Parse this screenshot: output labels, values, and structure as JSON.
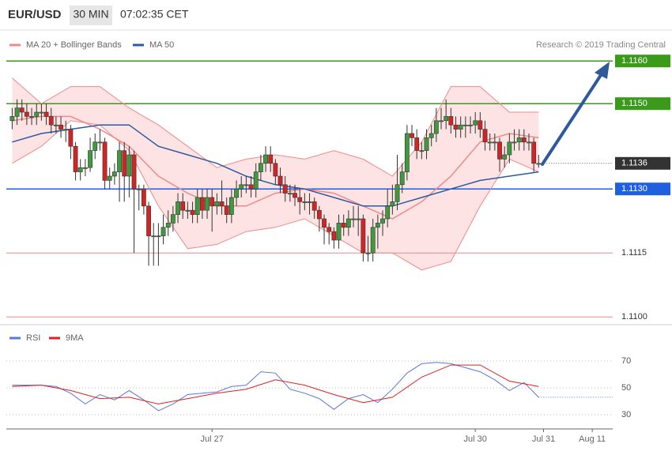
{
  "chart_data": {
    "type": "candlestick",
    "title": "EUR/USD",
    "timeframe": "30 MIN",
    "time": "07:02:35 CET",
    "credit": "Research © 2019 Trading Central",
    "up_color": "#3d9a3d",
    "down_color": "#d22424",
    "xlim": [
      -1.2,
      124
    ],
    "xticks": [
      {
        "value": 41,
        "label": "Jul 27"
      },
      {
        "value": 95,
        "label": "Jul 30"
      },
      {
        "value": 109,
        "label": "Jul 31"
      },
      {
        "value": 119,
        "label": "Aug 11"
      }
    ],
    "ylim": [
      1.1098,
      1.1163
    ],
    "ohlc": [
      [
        1.1146,
        1.1149,
        1.1144,
        1.1147
      ],
      [
        1.1147,
        1.1151,
        1.1145,
        1.1149
      ],
      [
        1.1149,
        1.1151,
        1.1146,
        1.1148
      ],
      [
        1.1148,
        1.115,
        1.1145,
        1.1147
      ],
      [
        1.1147,
        1.1149,
        1.1145,
        1.1147
      ],
      [
        1.1147,
        1.115,
        1.1145,
        1.1148
      ],
      [
        1.1148,
        1.115,
        1.1146,
        1.1148
      ],
      [
        1.1148,
        1.115,
        1.1145,
        1.1147
      ],
      [
        1.1147,
        1.1149,
        1.1143,
        1.1145
      ],
      [
        1.1145,
        1.1147,
        1.1143,
        1.1145
      ],
      [
        1.1145,
        1.1147,
        1.1142,
        1.1144
      ],
      [
        1.1144,
        1.1146,
        1.1141,
        1.1144
      ],
      [
        1.1144,
        1.1145,
        1.1137,
        1.114
      ],
      [
        1.114,
        1.1141,
        1.1132,
        1.1134
      ],
      [
        1.1134,
        1.1137,
        1.1132,
        1.1135
      ],
      [
        1.1135,
        1.1137,
        1.1133,
        1.1135
      ],
      [
        1.1135,
        1.1142,
        1.1134,
        1.1139
      ],
      [
        1.1139,
        1.1143,
        1.1137,
        1.1141
      ],
      [
        1.1141,
        1.1144,
        1.1139,
        1.1141
      ],
      [
        1.1141,
        1.1142,
        1.113,
        1.1132
      ],
      [
        1.1132,
        1.1135,
        1.113,
        1.1133
      ],
      [
        1.1133,
        1.1136,
        1.1131,
        1.1134
      ],
      [
        1.1134,
        1.1141,
        1.1127,
        1.1139
      ],
      [
        1.1139,
        1.1141,
        1.1127,
        1.1133
      ],
      [
        1.1133,
        1.114,
        1.1128,
        1.1138
      ],
      [
        1.1138,
        1.1139,
        1.1115,
        1.113
      ],
      [
        1.113,
        1.1131,
        1.1125,
        1.113
      ],
      [
        1.113,
        1.1131,
        1.1124,
        1.1126
      ],
      [
        1.1126,
        1.1127,
        1.1112,
        1.1119
      ],
      [
        1.1119,
        1.1122,
        1.1112,
        1.1119
      ],
      [
        1.1119,
        1.1122,
        1.1112,
        1.1119
      ],
      [
        1.1119,
        1.1124,
        1.1117,
        1.1121
      ],
      [
        1.1121,
        1.1125,
        1.1119,
        1.1122
      ],
      [
        1.1122,
        1.1126,
        1.112,
        1.1124
      ],
      [
        1.1124,
        1.1129,
        1.1122,
        1.1127
      ],
      [
        1.1127,
        1.1129,
        1.1123,
        1.1125
      ],
      [
        1.1125,
        1.1127,
        1.1123,
        1.1125
      ],
      [
        1.1125,
        1.1127,
        1.1122,
        1.1124
      ],
      [
        1.1124,
        1.113,
        1.1122,
        1.1128
      ],
      [
        1.1128,
        1.113,
        1.1123,
        1.1125
      ],
      [
        1.1125,
        1.113,
        1.1123,
        1.1128
      ],
      [
        1.1128,
        1.113,
        1.112,
        1.1126
      ],
      [
        1.1126,
        1.1129,
        1.1124,
        1.1127
      ],
      [
        1.1127,
        1.1132,
        1.1124,
        1.1126
      ],
      [
        1.1126,
        1.1128,
        1.1122,
        1.1124
      ],
      [
        1.1124,
        1.113,
        1.1122,
        1.1128
      ],
      [
        1.1128,
        1.1132,
        1.1126,
        1.113
      ],
      [
        1.113,
        1.1133,
        1.1128,
        1.1131
      ],
      [
        1.1131,
        1.1133,
        1.1129,
        1.1131
      ],
      [
        1.1131,
        1.1133,
        1.1128,
        1.113
      ],
      [
        1.113,
        1.1136,
        1.1128,
        1.1134
      ],
      [
        1.1134,
        1.1138,
        1.1132,
        1.1136
      ],
      [
        1.1136,
        1.114,
        1.1134,
        1.1138
      ],
      [
        1.1138,
        1.114,
        1.1134,
        1.1136
      ],
      [
        1.1136,
        1.1137,
        1.1131,
        1.1133
      ],
      [
        1.1133,
        1.1135,
        1.1129,
        1.1131
      ],
      [
        1.1131,
        1.1133,
        1.1127,
        1.1129
      ],
      [
        1.1129,
        1.1131,
        1.1127,
        1.1129
      ],
      [
        1.1129,
        1.1131,
        1.1126,
        1.1128
      ],
      [
        1.1128,
        1.113,
        1.1124,
        1.1127
      ],
      [
        1.1127,
        1.1129,
        1.1125,
        1.1127
      ],
      [
        1.1127,
        1.1129,
        1.1124,
        1.1127
      ],
      [
        1.1127,
        1.1128,
        1.1123,
        1.1125
      ],
      [
        1.1125,
        1.1126,
        1.112,
        1.1123
      ],
      [
        1.1123,
        1.1124,
        1.1117,
        1.1121
      ],
      [
        1.1121,
        1.1122,
        1.1117,
        1.112
      ],
      [
        1.112,
        1.1121,
        1.1116,
        1.1118
      ],
      [
        1.1118,
        1.1124,
        1.1116,
        1.1122
      ],
      [
        1.1122,
        1.1124,
        1.1119,
        1.1121
      ],
      [
        1.1121,
        1.1125,
        1.1119,
        1.1123
      ],
      [
        1.1123,
        1.1126,
        1.1121,
        1.1123
      ],
      [
        1.1123,
        1.1126,
        1.1119,
        1.1123
      ],
      [
        1.1123,
        1.1124,
        1.1113,
        1.1115
      ],
      [
        1.1115,
        1.1119,
        1.1113,
        1.1115
      ],
      [
        1.1115,
        1.1123,
        1.1113,
        1.1121
      ],
      [
        1.1121,
        1.1124,
        1.1116,
        1.1122
      ],
      [
        1.1122,
        1.1125,
        1.1119,
        1.1123
      ],
      [
        1.1123,
        1.113,
        1.1121,
        1.1126
      ],
      [
        1.1126,
        1.1131,
        1.1124,
        1.1127
      ],
      [
        1.1127,
        1.1138,
        1.1125,
        1.1131
      ],
      [
        1.1131,
        1.1136,
        1.1129,
        1.1134
      ],
      [
        1.1134,
        1.1145,
        1.1132,
        1.1143
      ],
      [
        1.1143,
        1.1145,
        1.114,
        1.1142
      ],
      [
        1.1142,
        1.1144,
        1.1137,
        1.1139
      ],
      [
        1.1139,
        1.1141,
        1.1137,
        1.1139
      ],
      [
        1.1139,
        1.1144,
        1.1137,
        1.1142
      ],
      [
        1.1142,
        1.1145,
        1.114,
        1.1143
      ],
      [
        1.1143,
        1.1149,
        1.1141,
        1.1146
      ],
      [
        1.1146,
        1.1149,
        1.1144,
        1.1146
      ],
      [
        1.1146,
        1.1151,
        1.1144,
        1.1147
      ],
      [
        1.1147,
        1.1149,
        1.1143,
        1.1145
      ],
      [
        1.1145,
        1.1147,
        1.1142,
        1.1144
      ],
      [
        1.1144,
        1.1147,
        1.1142,
        1.1145
      ],
      [
        1.1145,
        1.1147,
        1.1142,
        1.1145
      ],
      [
        1.1145,
        1.1147,
        1.1143,
        1.1145
      ],
      [
        1.1145,
        1.1148,
        1.1143,
        1.1146
      ],
      [
        1.1146,
        1.1148,
        1.1142,
        1.1144
      ],
      [
        1.1144,
        1.1146,
        1.1139,
        1.1141
      ],
      [
        1.1141,
        1.1143,
        1.1139,
        1.1141
      ],
      [
        1.1141,
        1.1143,
        1.1139,
        1.1141
      ],
      [
        1.1141,
        1.1142,
        1.1134,
        1.1137
      ],
      [
        1.1137,
        1.114,
        1.1135,
        1.1138
      ],
      [
        1.1138,
        1.1143,
        1.1136,
        1.1141
      ],
      [
        1.1141,
        1.1144,
        1.1139,
        1.1141
      ],
      [
        1.1141,
        1.1144,
        1.1139,
        1.1142
      ],
      [
        1.1142,
        1.1144,
        1.1139,
        1.1141
      ],
      [
        1.1141,
        1.1143,
        1.1139,
        1.1141
      ],
      [
        1.1141,
        1.1142,
        1.1134,
        1.1136
      ],
      [
        1.1136,
        1.1138,
        1.1135,
        1.1136
      ]
    ],
    "line_x": [
      0,
      6,
      12,
      18,
      24,
      30,
      36,
      42,
      48,
      54,
      60,
      66,
      72,
      78,
      84,
      90,
      96,
      102,
      108
    ],
    "series": [
      {
        "name": "MA 20 + Bollinger Bands",
        "color": "#f08a8a",
        "band_color": "#fde3e3",
        "values": [
          1.1146,
          1.1147,
          1.1147,
          1.1144,
          1.114,
          1.1133,
          1.1129,
          1.1126,
          1.1126,
          1.1129,
          1.113,
          1.1129,
          1.1126,
          1.1123,
          1.1127,
          1.1133,
          1.1141,
          1.1143,
          1.1142
        ],
        "upper": [
          1.1156,
          1.115,
          1.1154,
          1.1154,
          1.1149,
          1.1145,
          1.114,
          1.1135,
          1.1137,
          1.1138,
          1.1137,
          1.1139,
          1.1137,
          1.1133,
          1.1141,
          1.1154,
          1.1154,
          1.1148,
          1.1148
        ],
        "lower": [
          1.1136,
          1.114,
          1.1146,
          1.1145,
          1.1139,
          1.1126,
          1.1116,
          1.1117,
          1.112,
          1.1121,
          1.1123,
          1.1119,
          1.1115,
          1.1115,
          1.1111,
          1.1113,
          1.1126,
          1.1137,
          1.1134
        ]
      },
      {
        "name": "MA 50",
        "color": "#2c5aa0",
        "values": [
          1.1141,
          1.1143,
          1.1144,
          1.1145,
          1.1145,
          1.114,
          1.1138,
          1.1136,
          1.1133,
          1.1131,
          1.113,
          1.1128,
          1.1126,
          1.1126,
          1.1128,
          1.113,
          1.1132,
          1.1133,
          1.1134
        ]
      }
    ],
    "levels": [
      {
        "value": 1.116,
        "label": "1.1160",
        "color": "#3a9a1a",
        "boxed": true
      },
      {
        "value": 1.115,
        "label": "1.1150",
        "color": "#3a9a1a",
        "boxed": true
      },
      {
        "value": 1.113,
        "label": "1.1130",
        "color": "#2060e0",
        "boxed": true
      },
      {
        "value": 1.1115,
        "label": "1.1115",
        "color": "#e88a8a",
        "boxed": false
      },
      {
        "value": 1.11,
        "label": "1.1100",
        "color": "#e88a8a",
        "boxed": false
      }
    ],
    "last_price": {
      "value": 1.1136,
      "label": "1.1136",
      "color": "#333333"
    },
    "rsi": {
      "ylim": [
        20,
        80
      ],
      "yticks": [
        30,
        50,
        70
      ],
      "x": [
        0,
        3,
        6,
        9,
        12,
        15,
        18,
        21,
        24,
        27,
        30,
        33,
        36,
        39,
        42,
        45,
        48,
        51,
        54,
        57,
        60,
        63,
        66,
        69,
        72,
        75,
        78,
        81,
        84,
        87,
        90,
        93,
        96,
        99,
        102,
        105,
        108
      ],
      "series": [
        {
          "name": "RSI",
          "color": "#5a78dc",
          "values": [
            52,
            52,
            52,
            51,
            46,
            38,
            45,
            41,
            48,
            41,
            33,
            38,
            45,
            46,
            47,
            51,
            52,
            62,
            61,
            49,
            46,
            42,
            34,
            42,
            45,
            39,
            49,
            61,
            68,
            69,
            68,
            65,
            62,
            56,
            48,
            54,
            43
          ]
        },
        {
          "name": "9MA",
          "color": "#e02020",
          "x": [
            0,
            6,
            12,
            18,
            24,
            30,
            36,
            42,
            48,
            54,
            60,
            66,
            72,
            78,
            84,
            90,
            96,
            102,
            108
          ],
          "values": [
            51,
            52,
            48,
            42,
            43,
            38,
            42,
            46,
            49,
            56,
            52,
            45,
            39,
            43,
            58,
            67,
            67,
            55,
            51
          ]
        }
      ]
    }
  }
}
